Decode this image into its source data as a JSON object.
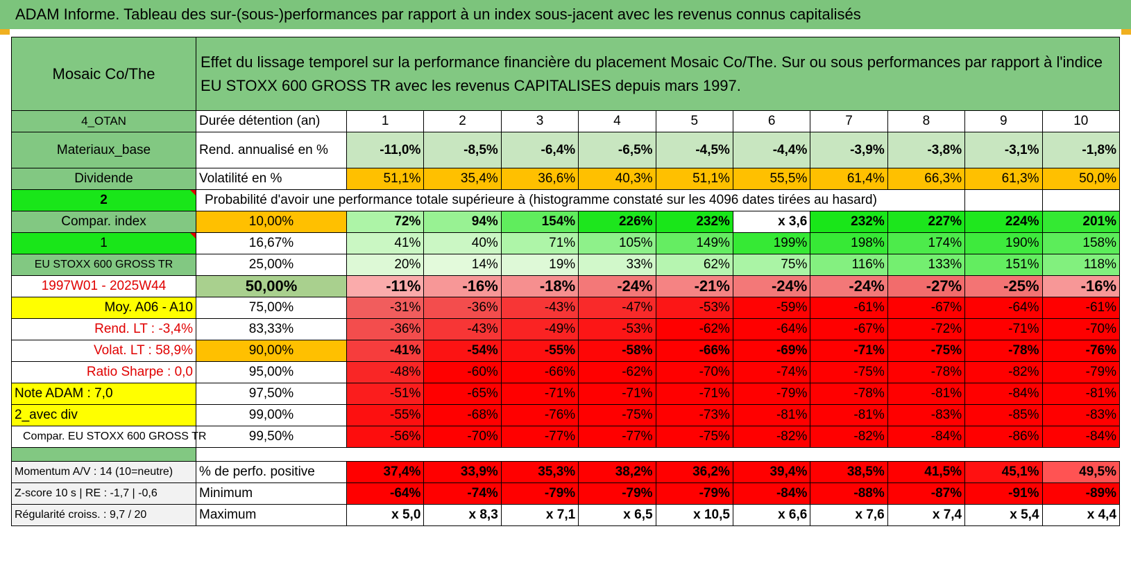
{
  "title": "ADAM Informe. Tableau des sur-(sous-)performances par rapport à un index sous-jacent avec les revenus connus capitalisés",
  "header": {
    "fund_name": "Mosaic Co/The",
    "description": "Effet du lissage temporel sur la performance financière du placement Mosaic Co/The. Sur ou sous performances par rapport à l'indice EU STOXX 600 GROSS TR avec les revenus CAPITALISES depuis mars 1997."
  },
  "left_labels": [
    "4_OTAN",
    "Materiaux_base",
    "Dividende",
    "2",
    "Compar. index",
    "1",
    "EU STOXX 600 GROSS TR",
    "1997W01 - 2025W44",
    "Moy. A06 - A10",
    "Rend. LT :    -3,4%",
    "Volat. LT :    58,9%",
    "Ratio Sharpe :     0,0",
    "Note ADAM : 7,0",
    "2_avec div",
    "Compar. EU STOXX 600 GROSS TR"
  ],
  "rows": {
    "duration": {
      "label": "Durée détention (an)",
      "values": [
        "1",
        "2",
        "3",
        "4",
        "5",
        "6",
        "7",
        "8",
        "9",
        "10"
      ]
    },
    "annual_return": {
      "label": "Rend. annualisé en %",
      "values": [
        "-11,0%",
        "-8,5%",
        "-6,4%",
        "-6,5%",
        "-4,5%",
        "-4,4%",
        "-3,9%",
        "-3,8%",
        "-3,1%",
        "-1,8%"
      ]
    },
    "volatility": {
      "label": "Volatilité en %",
      "values": [
        "51,1%",
        "35,4%",
        "36,6%",
        "40,3%",
        "51,1%",
        "55,5%",
        "61,4%",
        "66,3%",
        "61,3%",
        "50,0%"
      ]
    },
    "probability_title": "Probabilité d'avoir une performance totale supérieure à (histogramme constaté sur les 4096 dates tirées au hasard)"
  },
  "quantiles": [
    {
      "pct": "10,00%",
      "values": [
        "72%",
        "94%",
        "154%",
        "226%",
        "232%",
        "x 3,6",
        "232%",
        "227%",
        "224%",
        "201%"
      ]
    },
    {
      "pct": "16,67%",
      "values": [
        "41%",
        "40%",
        "71%",
        "105%",
        "149%",
        "199%",
        "198%",
        "174%",
        "190%",
        "158%"
      ]
    },
    {
      "pct": "25,00%",
      "values": [
        "20%",
        "14%",
        "19%",
        "33%",
        "62%",
        "75%",
        "116%",
        "133%",
        "151%",
        "118%"
      ]
    },
    {
      "pct": "50,00%",
      "values": [
        "-11%",
        "-16%",
        "-18%",
        "-24%",
        "-21%",
        "-24%",
        "-24%",
        "-27%",
        "-25%",
        "-16%"
      ]
    },
    {
      "pct": "75,00%",
      "values": [
        "-31%",
        "-36%",
        "-43%",
        "-47%",
        "-53%",
        "-59%",
        "-61%",
        "-67%",
        "-64%",
        "-61%"
      ]
    },
    {
      "pct": "83,33%",
      "values": [
        "-36%",
        "-43%",
        "-49%",
        "-53%",
        "-62%",
        "-64%",
        "-67%",
        "-72%",
        "-71%",
        "-70%"
      ]
    },
    {
      "pct": "90,00%",
      "values": [
        "-41%",
        "-54%",
        "-55%",
        "-58%",
        "-66%",
        "-69%",
        "-71%",
        "-75%",
        "-78%",
        "-76%"
      ]
    },
    {
      "pct": "95,00%",
      "values": [
        "-48%",
        "-60%",
        "-66%",
        "-62%",
        "-70%",
        "-74%",
        "-75%",
        "-78%",
        "-82%",
        "-79%"
      ]
    },
    {
      "pct": "97,50%",
      "values": [
        "-51%",
        "-65%",
        "-71%",
        "-71%",
        "-71%",
        "-79%",
        "-78%",
        "-81%",
        "-84%",
        "-81%"
      ]
    },
    {
      "pct": "99,00%",
      "values": [
        "-55%",
        "-68%",
        "-76%",
        "-75%",
        "-73%",
        "-81%",
        "-81%",
        "-83%",
        "-85%",
        "-83%"
      ]
    },
    {
      "pct": "99,50%",
      "values": [
        "-56%",
        "-70%",
        "-77%",
        "-77%",
        "-75%",
        "-82%",
        "-82%",
        "-84%",
        "-86%",
        "-84%"
      ]
    }
  ],
  "bottom": [
    {
      "left": "Momentum A/V : 14 (10=neutre)",
      "label": "% de perfo. positive",
      "values": [
        "37,4%",
        "33,9%",
        "35,3%",
        "38,2%",
        "36,2%",
        "39,4%",
        "38,5%",
        "41,5%",
        "45,1%",
        "49,5%"
      ]
    },
    {
      "left": "Z-score 10 s | RE : -1,7 | -0,6",
      "label": "Minimum",
      "values": [
        "-64%",
        "-74%",
        "-79%",
        "-79%",
        "-79%",
        "-84%",
        "-88%",
        "-87%",
        "-91%",
        "-89%"
      ]
    },
    {
      "left": "Régularité croiss. : 9,7 / 20",
      "label": "Maximum",
      "values": [
        "x 5,0",
        "x 8,3",
        "x 7,1",
        "x 6,5",
        "x 10,5",
        "x 6,6",
        "x 7,6",
        "x 7,4",
        "x 5,4",
        "x 4,4"
      ]
    }
  ],
  "colors": {
    "header_green": "#82c882",
    "bright_green": "#19e619",
    "yellow": "#ffff00",
    "orange": "#ffc000",
    "red": "#ff0000"
  }
}
